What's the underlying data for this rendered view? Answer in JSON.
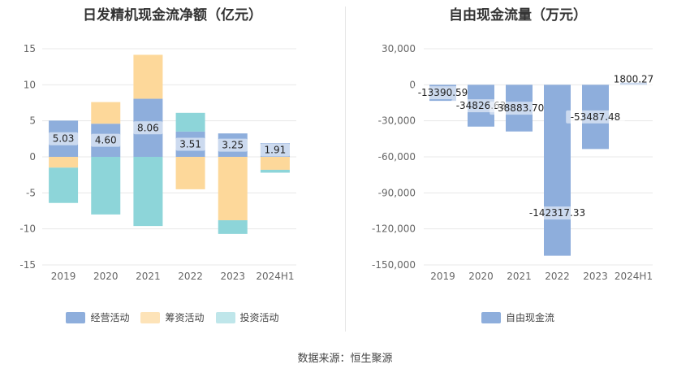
{
  "left_chart": {
    "title": "日发精机现金流净额（亿元）",
    "legend": [
      {
        "name": "经营活动",
        "color": "#8eaedc"
      },
      {
        "name": "筹资活动",
        "color": "#fdd89a"
      },
      {
        "name": "投资活动",
        "color": "#bfe6ea"
      }
    ]
  },
  "right_chart": {
    "title": "自由现金流量（万元）",
    "legend": [
      {
        "name": "自由现金流",
        "color": "#8eaedc"
      }
    ]
  },
  "footer": {
    "source": "数据来源：恒生聚源"
  },
  "chart_data": [
    {
      "type": "bar",
      "stacked": true,
      "title": "日发精机现金流净额（亿元）",
      "categories": [
        "2019",
        "2020",
        "2021",
        "2022",
        "2023",
        "2024H1"
      ],
      "series": [
        {
          "name": "经营活动",
          "color": "#8eaedc",
          "values": [
            5.03,
            4.6,
            8.06,
            3.51,
            3.25,
            1.91
          ],
          "labels": [
            "5.03",
            "4.60",
            "8.06",
            "3.51",
            "3.25",
            "1.91"
          ]
        },
        {
          "name": "筹资活动",
          "color": "#fdd89a",
          "values": [
            -1.5,
            3.0,
            6.1,
            -4.5,
            -8.8,
            -1.8
          ]
        },
        {
          "name": "投资活动",
          "color": "#8dd5d9",
          "values": [
            -4.9,
            -8.0,
            -9.6,
            2.6,
            -1.9,
            -0.4
          ]
        }
      ],
      "yticks": [
        15,
        10,
        5,
        0,
        -5,
        -10,
        -15
      ],
      "ylim": [
        -15,
        15
      ],
      "grid": true,
      "legend_position": "bottom"
    },
    {
      "type": "bar",
      "title": "自由现金流量（万元）",
      "categories": [
        "2019",
        "2020",
        "2021",
        "2022",
        "2023",
        "2024H1"
      ],
      "series": [
        {
          "name": "自由现金流",
          "color": "#8eaedc",
          "values": [
            -13390.59,
            -34826.63,
            -38883.7,
            -142317.33,
            -53487.48,
            1800.27
          ],
          "labels": [
            "-13390.59",
            "-34826.63",
            "-38883.70",
            "-142317.33",
            "-53487.48",
            "1800.27"
          ]
        }
      ],
      "yticks": [
        "30,000",
        "0",
        "-30,000",
        "-60,000",
        "-90,000",
        "-120,000",
        "-150,000"
      ],
      "ytick_values": [
        30000,
        0,
        -30000,
        -60000,
        -90000,
        -120000,
        -150000
      ],
      "ylim": [
        -150000,
        30000
      ],
      "grid": true,
      "legend_position": "bottom"
    }
  ]
}
